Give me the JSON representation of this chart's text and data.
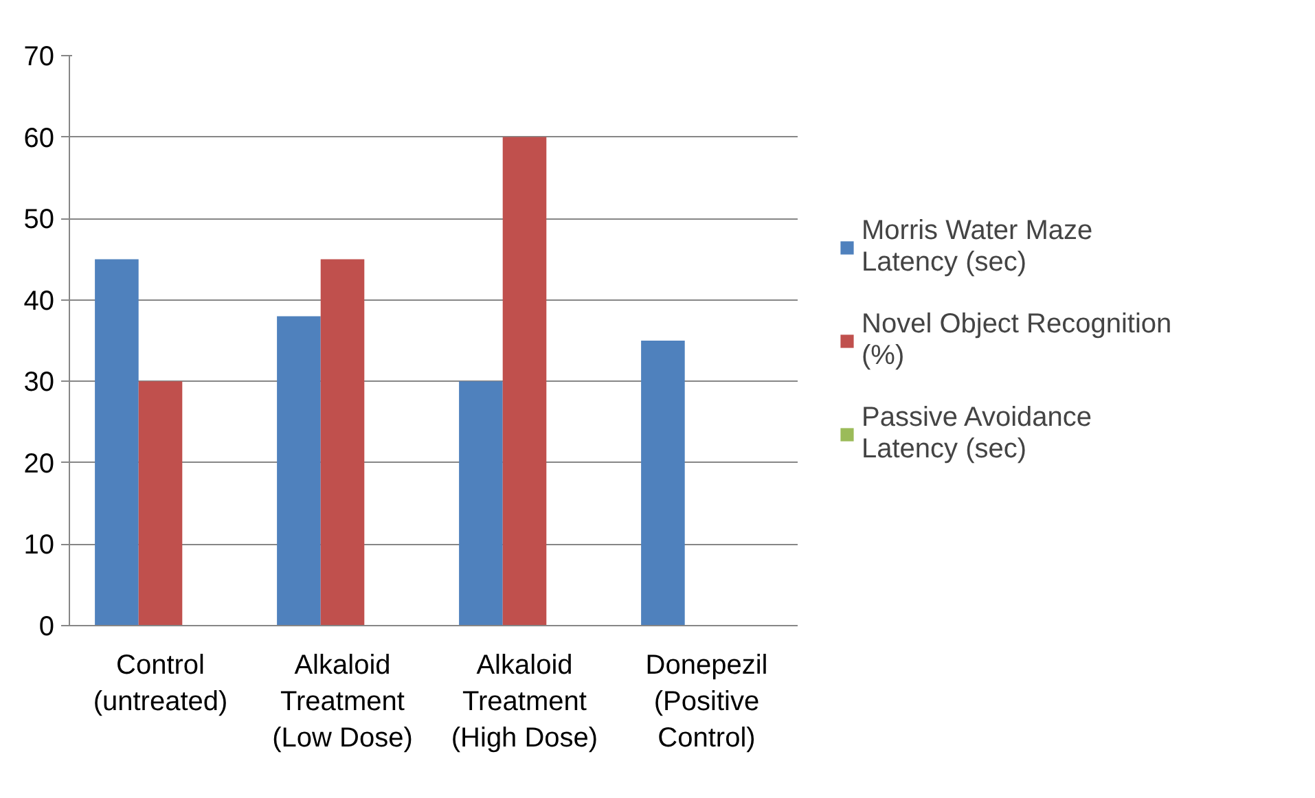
{
  "chart_data": {
    "type": "bar",
    "categories": [
      "Control (untreated)",
      "Alkaloid Treatment (Low Dose)",
      "Alkaloid Treatment (High Dose)",
      "Donepezil (Positive Control)"
    ],
    "series": [
      {
        "name": "Morris Water Maze Latency (sec)",
        "color": "#4f81bd",
        "values": [
          45,
          38,
          30,
          35
        ]
      },
      {
        "name": "Novel Object Recognition (%)",
        "color": "#c0504d",
        "values": [
          30,
          45,
          60,
          null
        ]
      },
      {
        "name": "Passive Avoidance Latency (sec)",
        "color": "#9bbb59",
        "values": [
          null,
          null,
          null,
          null
        ]
      }
    ],
    "ylim": [
      0,
      70
    ],
    "yticks": [
      0,
      10,
      20,
      30,
      40,
      50,
      60,
      70
    ],
    "grid": "y",
    "legend": "right"
  }
}
